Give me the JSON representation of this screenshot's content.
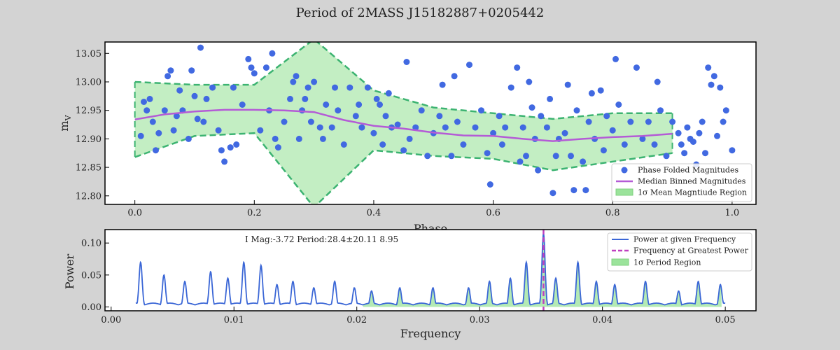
{
  "figure": {
    "title": "Period of 2MASS J15182887+0205442",
    "background": "#d3d3d3"
  },
  "chart_data": [
    {
      "type": "scatter",
      "panel": "top",
      "xlabel": "Phase",
      "ylabel": "m_V",
      "ylabel_main": "m",
      "ylabel_sub": "V",
      "xlim": [
        -0.05,
        1.04
      ],
      "ylim": [
        12.785,
        13.07
      ],
      "xticks": [
        0.0,
        0.2,
        0.4,
        0.6,
        0.8,
        1.0
      ],
      "xtick_labels": [
        "0.0",
        "0.2",
        "0.4",
        "0.6",
        "0.8",
        "1.0"
      ],
      "yticks": [
        12.8,
        12.85,
        12.9,
        12.95,
        13.0,
        13.05
      ],
      "ytick_labels": [
        "12.80",
        "12.85",
        "12.90",
        "12.95",
        "13.00",
        "13.05"
      ],
      "legend_position": "lower-right",
      "legend": [
        {
          "label": "Phase Folded Magnitudes",
          "kind": "marker"
        },
        {
          "label": "Median Binned Magnitudes",
          "kind": "line"
        },
        {
          "label": "1σ Mean Magntiude Region",
          "kind": "patch"
        }
      ],
      "colors": {
        "points": "#4169e1",
        "median": "#b45bd6",
        "band_fill": "#9be39b",
        "band_edge": "#3cb371"
      },
      "series": [
        {
          "name": "Phase Folded Magnitudes",
          "points": [
            [
              0.01,
              12.905
            ],
            [
              0.015,
              12.965
            ],
            [
              0.02,
              12.95
            ],
            [
              0.025,
              12.97
            ],
            [
              0.03,
              12.93
            ],
            [
              0.035,
              12.88
            ],
            [
              0.04,
              12.91
            ],
            [
              0.05,
              12.95
            ],
            [
              0.055,
              13.01
            ],
            [
              0.06,
              13.02
            ],
            [
              0.065,
              12.915
            ],
            [
              0.07,
              12.94
            ],
            [
              0.075,
              12.985
            ],
            [
              0.08,
              12.95
            ],
            [
              0.09,
              12.9
            ],
            [
              0.095,
              13.02
            ],
            [
              0.1,
              12.975
            ],
            [
              0.105,
              12.935
            ],
            [
              0.11,
              13.06
            ],
            [
              0.115,
              12.93
            ],
            [
              0.12,
              12.97
            ],
            [
              0.13,
              12.99
            ],
            [
              0.14,
              12.915
            ],
            [
              0.145,
              12.88
            ],
            [
              0.15,
              12.86
            ],
            [
              0.16,
              12.885
            ],
            [
              0.165,
              12.99
            ],
            [
              0.17,
              12.89
            ],
            [
              0.18,
              12.96
            ],
            [
              0.19,
              13.04
            ],
            [
              0.195,
              13.025
            ],
            [
              0.2,
              13.015
            ],
            [
              0.21,
              12.915
            ],
            [
              0.22,
              13.025
            ],
            [
              0.225,
              12.95
            ],
            [
              0.23,
              13.05
            ],
            [
              0.235,
              12.9
            ],
            [
              0.24,
              12.885
            ],
            [
              0.25,
              12.93
            ],
            [
              0.26,
              12.97
            ],
            [
              0.265,
              13.0
            ],
            [
              0.27,
              13.01
            ],
            [
              0.275,
              12.9
            ],
            [
              0.28,
              12.95
            ],
            [
              0.285,
              12.97
            ],
            [
              0.29,
              12.99
            ],
            [
              0.295,
              12.93
            ],
            [
              0.3,
              13.0
            ],
            [
              0.31,
              12.92
            ],
            [
              0.315,
              12.9
            ],
            [
              0.32,
              12.96
            ],
            [
              0.33,
              12.92
            ],
            [
              0.335,
              12.99
            ],
            [
              0.34,
              12.95
            ],
            [
              0.35,
              12.89
            ],
            [
              0.36,
              12.99
            ],
            [
              0.37,
              12.94
            ],
            [
              0.375,
              12.96
            ],
            [
              0.38,
              12.92
            ],
            [
              0.39,
              12.99
            ],
            [
              0.4,
              12.91
            ],
            [
              0.405,
              12.97
            ],
            [
              0.41,
              12.96
            ],
            [
              0.415,
              12.89
            ],
            [
              0.42,
              12.94
            ],
            [
              0.425,
              12.98
            ],
            [
              0.43,
              12.92
            ],
            [
              0.44,
              12.925
            ],
            [
              0.45,
              12.88
            ],
            [
              0.455,
              13.035
            ],
            [
              0.46,
              12.9
            ],
            [
              0.47,
              12.92
            ],
            [
              0.48,
              12.95
            ],
            [
              0.49,
              12.87
            ],
            [
              0.5,
              12.91
            ],
            [
              0.51,
              12.94
            ],
            [
              0.515,
              12.995
            ],
            [
              0.52,
              12.92
            ],
            [
              0.53,
              12.87
            ],
            [
              0.535,
              13.01
            ],
            [
              0.54,
              12.93
            ],
            [
              0.55,
              12.89
            ],
            [
              0.56,
              13.03
            ],
            [
              0.57,
              12.92
            ],
            [
              0.58,
              12.95
            ],
            [
              0.59,
              12.875
            ],
            [
              0.595,
              12.82
            ],
            [
              0.6,
              12.91
            ],
            [
              0.61,
              12.94
            ],
            [
              0.615,
              12.89
            ],
            [
              0.62,
              12.92
            ],
            [
              0.63,
              12.99
            ],
            [
              0.64,
              13.025
            ],
            [
              0.645,
              12.86
            ],
            [
              0.65,
              12.92
            ],
            [
              0.655,
              12.87
            ],
            [
              0.66,
              13.0
            ],
            [
              0.665,
              12.955
            ],
            [
              0.67,
              12.9
            ],
            [
              0.675,
              12.845
            ],
            [
              0.68,
              12.94
            ],
            [
              0.69,
              12.92
            ],
            [
              0.695,
              12.97
            ],
            [
              0.7,
              12.805
            ],
            [
              0.705,
              12.87
            ],
            [
              0.71,
              12.9
            ],
            [
              0.72,
              12.91
            ],
            [
              0.725,
              12.995
            ],
            [
              0.73,
              12.87
            ],
            [
              0.735,
              12.81
            ],
            [
              0.74,
              12.95
            ],
            [
              0.75,
              12.86
            ],
            [
              0.755,
              12.81
            ],
            [
              0.76,
              12.93
            ],
            [
              0.765,
              12.98
            ],
            [
              0.77,
              12.9
            ],
            [
              0.78,
              12.985
            ],
            [
              0.785,
              12.88
            ],
            [
              0.79,
              12.94
            ],
            [
              0.8,
              12.915
            ],
            [
              0.805,
              13.04
            ],
            [
              0.81,
              12.96
            ],
            [
              0.82,
              12.89
            ],
            [
              0.83,
              12.93
            ],
            [
              0.84,
              13.025
            ],
            [
              0.85,
              12.9
            ],
            [
              0.86,
              12.93
            ],
            [
              0.87,
              12.89
            ],
            [
              0.875,
              13.0
            ],
            [
              0.88,
              12.95
            ],
            [
              0.89,
              12.87
            ],
            [
              0.9,
              12.93
            ],
            [
              0.91,
              12.91
            ],
            [
              0.915,
              12.89
            ],
            [
              0.92,
              12.875
            ],
            [
              0.925,
              12.92
            ],
            [
              0.93,
              12.9
            ],
            [
              0.935,
              12.895
            ],
            [
              0.94,
              12.855
            ],
            [
              0.945,
              12.91
            ],
            [
              0.95,
              12.93
            ],
            [
              0.955,
              12.875
            ],
            [
              0.96,
              13.025
            ],
            [
              0.965,
              12.995
            ],
            [
              0.97,
              13.01
            ],
            [
              0.975,
              12.905
            ],
            [
              0.98,
              12.99
            ],
            [
              0.985,
              12.93
            ],
            [
              0.99,
              12.95
            ],
            [
              1.0,
              12.88
            ]
          ]
        },
        {
          "name": "Median Binned Magnitudes",
          "points": [
            [
              0.0,
              12.934
            ],
            [
              0.05,
              12.943
            ],
            [
              0.1,
              12.948
            ],
            [
              0.15,
              12.951
            ],
            [
              0.2,
              12.951
            ],
            [
              0.25,
              12.95
            ],
            [
              0.3,
              12.947
            ],
            [
              0.35,
              12.933
            ],
            [
              0.4,
              12.923
            ],
            [
              0.45,
              12.918
            ],
            [
              0.5,
              12.911
            ],
            [
              0.55,
              12.906
            ],
            [
              0.6,
              12.905
            ],
            [
              0.65,
              12.9
            ],
            [
              0.7,
              12.896
            ],
            [
              0.75,
              12.9
            ],
            [
              0.8,
              12.903
            ],
            [
              0.85,
              12.905
            ],
            [
              0.9,
              12.909
            ]
          ]
        },
        {
          "name": "1σ Mean Magntiude Region",
          "x": [
            0.0,
            0.1,
            0.2,
            0.3,
            0.4,
            0.5,
            0.6,
            0.7,
            0.8,
            0.9
          ],
          "upper": [
            13.0,
            12.995,
            12.995,
            13.075,
            12.985,
            12.955,
            12.945,
            12.935,
            12.945,
            12.945
          ],
          "lower": [
            12.868,
            12.905,
            12.91,
            12.78,
            12.88,
            12.87,
            12.865,
            12.845,
            12.86,
            12.875
          ]
        }
      ]
    },
    {
      "type": "line",
      "panel": "bottom",
      "xlabel": "Frequency",
      "ylabel": "Power",
      "xlim": [
        -0.0005,
        0.0525
      ],
      "ylim": [
        -0.006,
        0.121
      ],
      "xticks": [
        0.0,
        0.01,
        0.02,
        0.03,
        0.04,
        0.05
      ],
      "xtick_labels": [
        "0.00",
        "0.01",
        "0.02",
        "0.03",
        "0.04",
        "0.05"
      ],
      "yticks": [
        0.0,
        0.05,
        0.1
      ],
      "ytick_labels": [
        "0.00",
        "0.05",
        "0.10"
      ],
      "annotation": "I Mag:-3.72 Period:28.4±20.11 8.95",
      "legend_position": "top-right",
      "legend": [
        {
          "label": "Power at given Frequency",
          "kind": "line"
        },
        {
          "label": "Frequency at Greatest Power",
          "kind": "dashed"
        },
        {
          "label": "1σ Period Region",
          "kind": "patch"
        }
      ],
      "colors": {
        "power": "#3a66d6",
        "peak": "#c040c0",
        "region_fill": "#9be39b"
      },
      "x_range": [
        0.002,
        0.05
      ],
      "peak_frequency": 0.0352,
      "period_region": [
        0.0205,
        0.0497
      ],
      "series": [
        {
          "name": "Power at given Frequency",
          "peaks": [
            [
              0.0024,
              0.07
            ],
            [
              0.0043,
              0.05
            ],
            [
              0.006,
              0.04
            ],
            [
              0.0081,
              0.055
            ],
            [
              0.0095,
              0.045
            ],
            [
              0.0108,
              0.07
            ],
            [
              0.0122,
              0.065
            ],
            [
              0.0135,
              0.035
            ],
            [
              0.0148,
              0.04
            ],
            [
              0.0165,
              0.03
            ],
            [
              0.0182,
              0.04
            ],
            [
              0.0198,
              0.03
            ],
            [
              0.0212,
              0.025
            ],
            [
              0.0235,
              0.03
            ],
            [
              0.0262,
              0.03
            ],
            [
              0.0291,
              0.03
            ],
            [
              0.0308,
              0.04
            ],
            [
              0.0325,
              0.045
            ],
            [
              0.0338,
              0.07
            ],
            [
              0.0352,
              0.115
            ],
            [
              0.0362,
              0.045
            ],
            [
              0.038,
              0.07
            ],
            [
              0.0395,
              0.04
            ],
            [
              0.041,
              0.035
            ],
            [
              0.0435,
              0.04
            ],
            [
              0.0462,
              0.025
            ],
            [
              0.0478,
              0.04
            ],
            [
              0.0496,
              0.035
            ]
          ],
          "baseline": 0.006
        }
      ]
    }
  ]
}
